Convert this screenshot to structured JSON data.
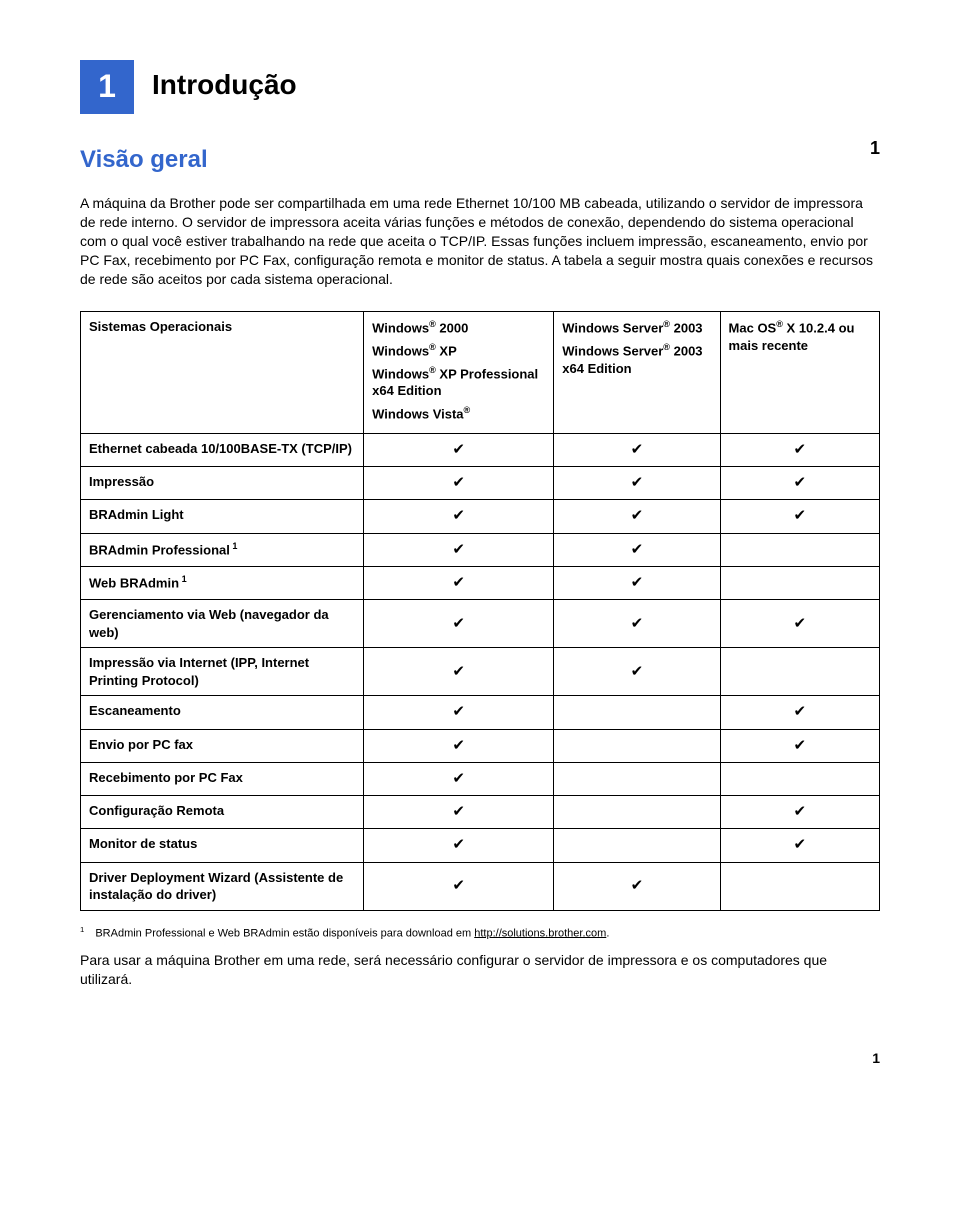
{
  "chapter": {
    "number": "1",
    "title": "Introdução"
  },
  "page_marker": "1",
  "section_heading": "Visão geral",
  "intro_text": "A máquina da Brother pode ser compartilhada em uma rede Ethernet 10/100 MB cabeada, utilizando o servidor de impressora de rede interno. O servidor de impressora aceita várias funções e métodos de conexão, dependendo do sistema operacional com o qual você estiver trabalhando na rede que aceita o TCP/IP. Essas funções incluem impressão, escaneamento, envio por PC Fax, recebimento por PC Fax, configuração remota e monitor de status. A tabela a seguir mostra quais conexões e recursos de rede são aceitos por cada sistema operacional.",
  "table": {
    "header": {
      "col0": "Sistemas Operacionais",
      "col1_lines": [
        "Windows® 2000",
        "Windows® XP",
        "Windows® XP Professional x64 Edition",
        "Windows Vista®"
      ],
      "col2_lines": [
        "Windows Server® 2003",
        "Windows Server® 2003 x64 Edition"
      ],
      "col3_lines": [
        "Mac OS® X 10.2.4 ou mais recente"
      ]
    },
    "rows": [
      {
        "label": "Ethernet cabeada 10/100BASE-TX (TCP/IP)",
        "sup": "",
        "c1": true,
        "c2": true,
        "c3": true
      },
      {
        "label": "Impressão",
        "sup": "",
        "c1": true,
        "c2": true,
        "c3": true
      },
      {
        "label": "BRAdmin Light",
        "sup": "",
        "c1": true,
        "c2": true,
        "c3": true
      },
      {
        "label": "BRAdmin Professional",
        "sup": "1",
        "c1": true,
        "c2": true,
        "c3": false
      },
      {
        "label": "Web BRAdmin",
        "sup": "1",
        "c1": true,
        "c2": true,
        "c3": false
      },
      {
        "label": "Gerenciamento via Web (navegador da web)",
        "sup": "",
        "c1": true,
        "c2": true,
        "c3": true
      },
      {
        "label": "Impressão via Internet (IPP, Internet Printing Protocol)",
        "sup": "",
        "c1": true,
        "c2": true,
        "c3": false
      },
      {
        "label": "Escaneamento",
        "sup": "",
        "c1": true,
        "c2": false,
        "c3": true
      },
      {
        "label": "Envio por PC fax",
        "sup": "",
        "c1": true,
        "c2": false,
        "c3": true
      },
      {
        "label": "Recebimento por PC Fax",
        "sup": "",
        "c1": true,
        "c2": false,
        "c3": false
      },
      {
        "label": "Configuração Remota",
        "sup": "",
        "c1": true,
        "c2": false,
        "c3": true
      },
      {
        "label": "Monitor de status",
        "sup": "",
        "c1": true,
        "c2": false,
        "c3": true
      },
      {
        "label": "Driver Deployment Wizard (Assistente de instalação do driver)",
        "sup": "",
        "c1": true,
        "c2": true,
        "c3": false
      }
    ]
  },
  "footnote": {
    "num": "1",
    "text_prefix": "BRAdmin Professional e Web BRAdmin estão disponíveis para download em ",
    "link": "http://solutions.brother.com",
    "text_suffix": "."
  },
  "closing_text": "Para usar a máquina Brother em uma rede, será necessário configurar o servidor de impressora e os computadores que utilizará.",
  "page_number": "1",
  "checkmark": "✔"
}
